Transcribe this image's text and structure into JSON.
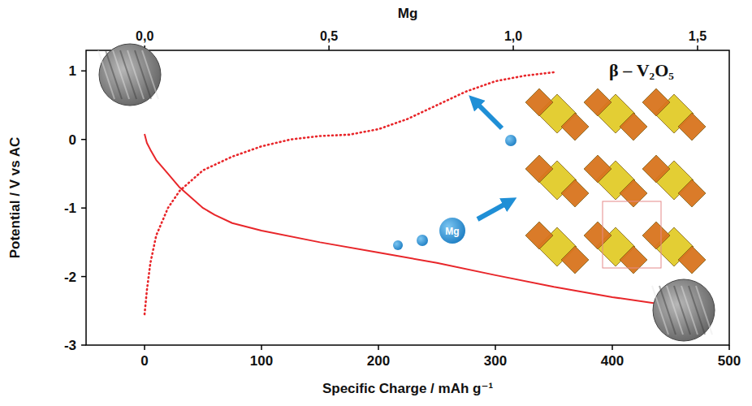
{
  "chart_data": {
    "type": "line",
    "xlabel": "Specific Charge / mAh g⁻¹",
    "ylabel": "Potential / V vs AC",
    "x2label": "Mg",
    "xlim": [
      -50,
      500
    ],
    "xticks": [
      0,
      100,
      200,
      300,
      400,
      500
    ],
    "ylim": [
      -3,
      1.3
    ],
    "yticks": [
      -3,
      -2,
      -1,
      0,
      1
    ],
    "x2lim": [
      -0.159,
      1.586
    ],
    "x2ticks": [
      {
        "value": 0,
        "label": "0,0"
      },
      {
        "value": 0.5,
        "label": "0,5"
      },
      {
        "value": 1.0,
        "label": "1,0"
      },
      {
        "value": 1.5,
        "label": "1,5"
      }
    ],
    "grid": false,
    "annotations": [
      {
        "text": "β – V₂O₅"
      },
      {
        "text": "Mg"
      }
    ],
    "series": [
      {
        "color": "#e8262a",
        "line_style": "solid",
        "x": [
          0,
          2,
          5,
          10,
          20,
          30,
          40,
          50,
          60,
          75,
          100,
          150,
          200,
          250,
          300,
          350,
          400,
          440
        ],
        "values": [
          0.08,
          -0.05,
          -0.15,
          -0.3,
          -0.5,
          -0.7,
          -0.85,
          -1.0,
          -1.1,
          -1.22,
          -1.33,
          -1.5,
          -1.65,
          -1.8,
          -1.98,
          -2.15,
          -2.3,
          -2.4
        ]
      },
      {
        "color": "#e8262a",
        "line_style": "dotted",
        "x": [
          0,
          2,
          5,
          10,
          20,
          30,
          50,
          75,
          100,
          125,
          150,
          175,
          200,
          225,
          250,
          275,
          300,
          325,
          350
        ],
        "values": [
          -2.55,
          -2.2,
          -1.8,
          -1.4,
          -1.0,
          -0.75,
          -0.45,
          -0.25,
          -0.1,
          0.0,
          0.05,
          0.07,
          0.15,
          0.3,
          0.5,
          0.7,
          0.85,
          0.93,
          0.98
        ]
      }
    ]
  }
}
